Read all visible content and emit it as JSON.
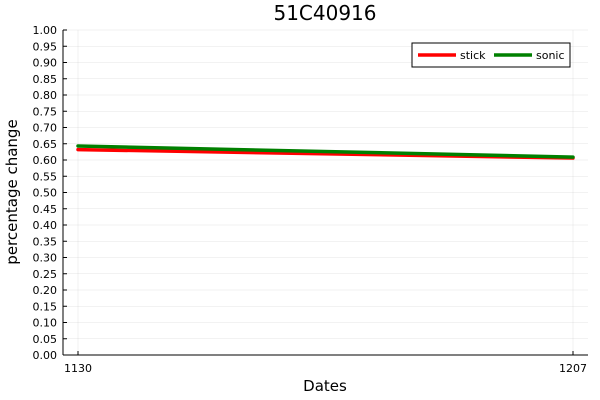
{
  "chart_data": {
    "type": "line",
    "title": "51C40916",
    "xlabel": "Dates",
    "ylabel": "percentage change",
    "categories": [
      "1130",
      "1207"
    ],
    "ylim": [
      0.0,
      1.0
    ],
    "yticks": [
      "0.00",
      "0.05",
      "0.10",
      "0.15",
      "0.20",
      "0.25",
      "0.30",
      "0.35",
      "0.40",
      "0.45",
      "0.50",
      "0.55",
      "0.60",
      "0.65",
      "0.70",
      "0.75",
      "0.80",
      "0.85",
      "0.90",
      "0.95",
      "1.00"
    ],
    "grid": true,
    "legend_position": "top-right",
    "series": [
      {
        "name": "stick",
        "color": "#ff0000",
        "values": [
          0.632,
          0.606
        ]
      },
      {
        "name": "sonic",
        "color": "#008000",
        "values": [
          0.643,
          0.609
        ]
      }
    ]
  }
}
